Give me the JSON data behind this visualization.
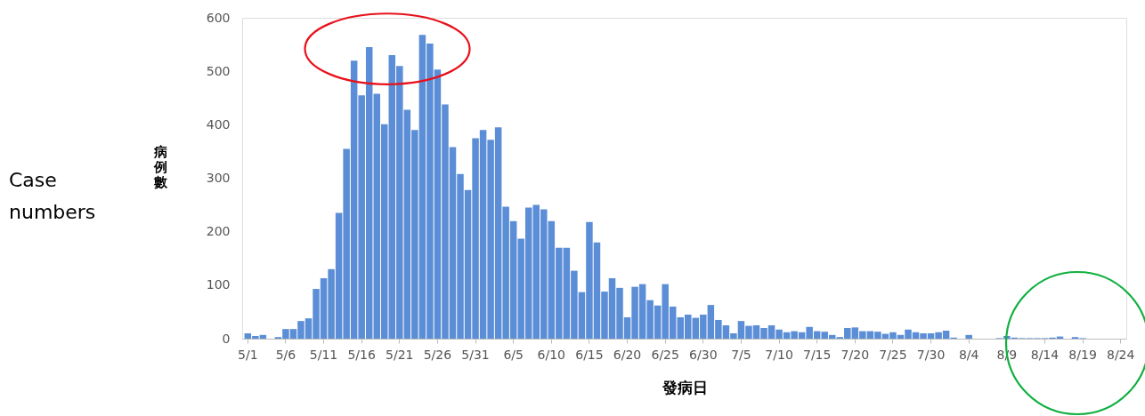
{
  "chart_data": {
    "type": "bar",
    "xlabel": "發病日",
    "ylabel": "病例數",
    "annotations": [
      "Case numbers"
    ],
    "categories": [
      "5/1",
      null,
      null,
      null,
      null,
      "5/6",
      null,
      null,
      null,
      null,
      "5/11",
      null,
      null,
      null,
      null,
      "5/16",
      null,
      null,
      null,
      null,
      "5/21",
      null,
      null,
      null,
      null,
      "5/26",
      null,
      null,
      null,
      null,
      "5/31",
      null,
      null,
      null,
      null,
      "6/5",
      null,
      null,
      null,
      null,
      "6/10",
      null,
      null,
      null,
      null,
      "6/15",
      null,
      null,
      null,
      null,
      "6/20",
      null,
      null,
      null,
      null,
      "6/25",
      null,
      null,
      null,
      null,
      "6/30",
      null,
      null,
      null,
      null,
      "7/5",
      null,
      null,
      null,
      null,
      "7/10",
      null,
      null,
      null,
      null,
      "7/15",
      null,
      null,
      null,
      null,
      "7/20",
      null,
      null,
      null,
      null,
      "7/25",
      null,
      null,
      null,
      null,
      "7/30",
      null,
      null,
      null,
      null,
      "8/4",
      null,
      null,
      null,
      null,
      "8/9",
      null,
      null,
      null,
      null,
      "8/14",
      null,
      null,
      null,
      null,
      "8/19",
      null,
      null,
      null,
      null,
      "8/24"
    ],
    "values": [
      10,
      5,
      7,
      0,
      3,
      18,
      18,
      33,
      38,
      93,
      113,
      130,
      235,
      355,
      520,
      455,
      545,
      458,
      401,
      530,
      510,
      428,
      390,
      568,
      552,
      503,
      438,
      358,
      308,
      278,
      375,
      390,
      372,
      395,
      247,
      220,
      187,
      245,
      250,
      242,
      220,
      170,
      170,
      127,
      87,
      218,
      180,
      88,
      113,
      95,
      40,
      97,
      102,
      72,
      62,
      102,
      60,
      40,
      45,
      39,
      45,
      63,
      35,
      25,
      10,
      33,
      24,
      25,
      20,
      25,
      17,
      12,
      14,
      12,
      22,
      14,
      13,
      7,
      3,
      20,
      21,
      14,
      14,
      13,
      9,
      12,
      7,
      17,
      12,
      10,
      10,
      12,
      15,
      2,
      0,
      7,
      0,
      0,
      0,
      1,
      5,
      2,
      1,
      1,
      1,
      1,
      2,
      4,
      0,
      3,
      1,
      0,
      0,
      0,
      0,
      0
    ],
    "color": "#5b8ed6",
    "ylim": [
      0,
      600
    ],
    "yticks": [
      0,
      100,
      200,
      300,
      400,
      500,
      600
    ]
  }
}
